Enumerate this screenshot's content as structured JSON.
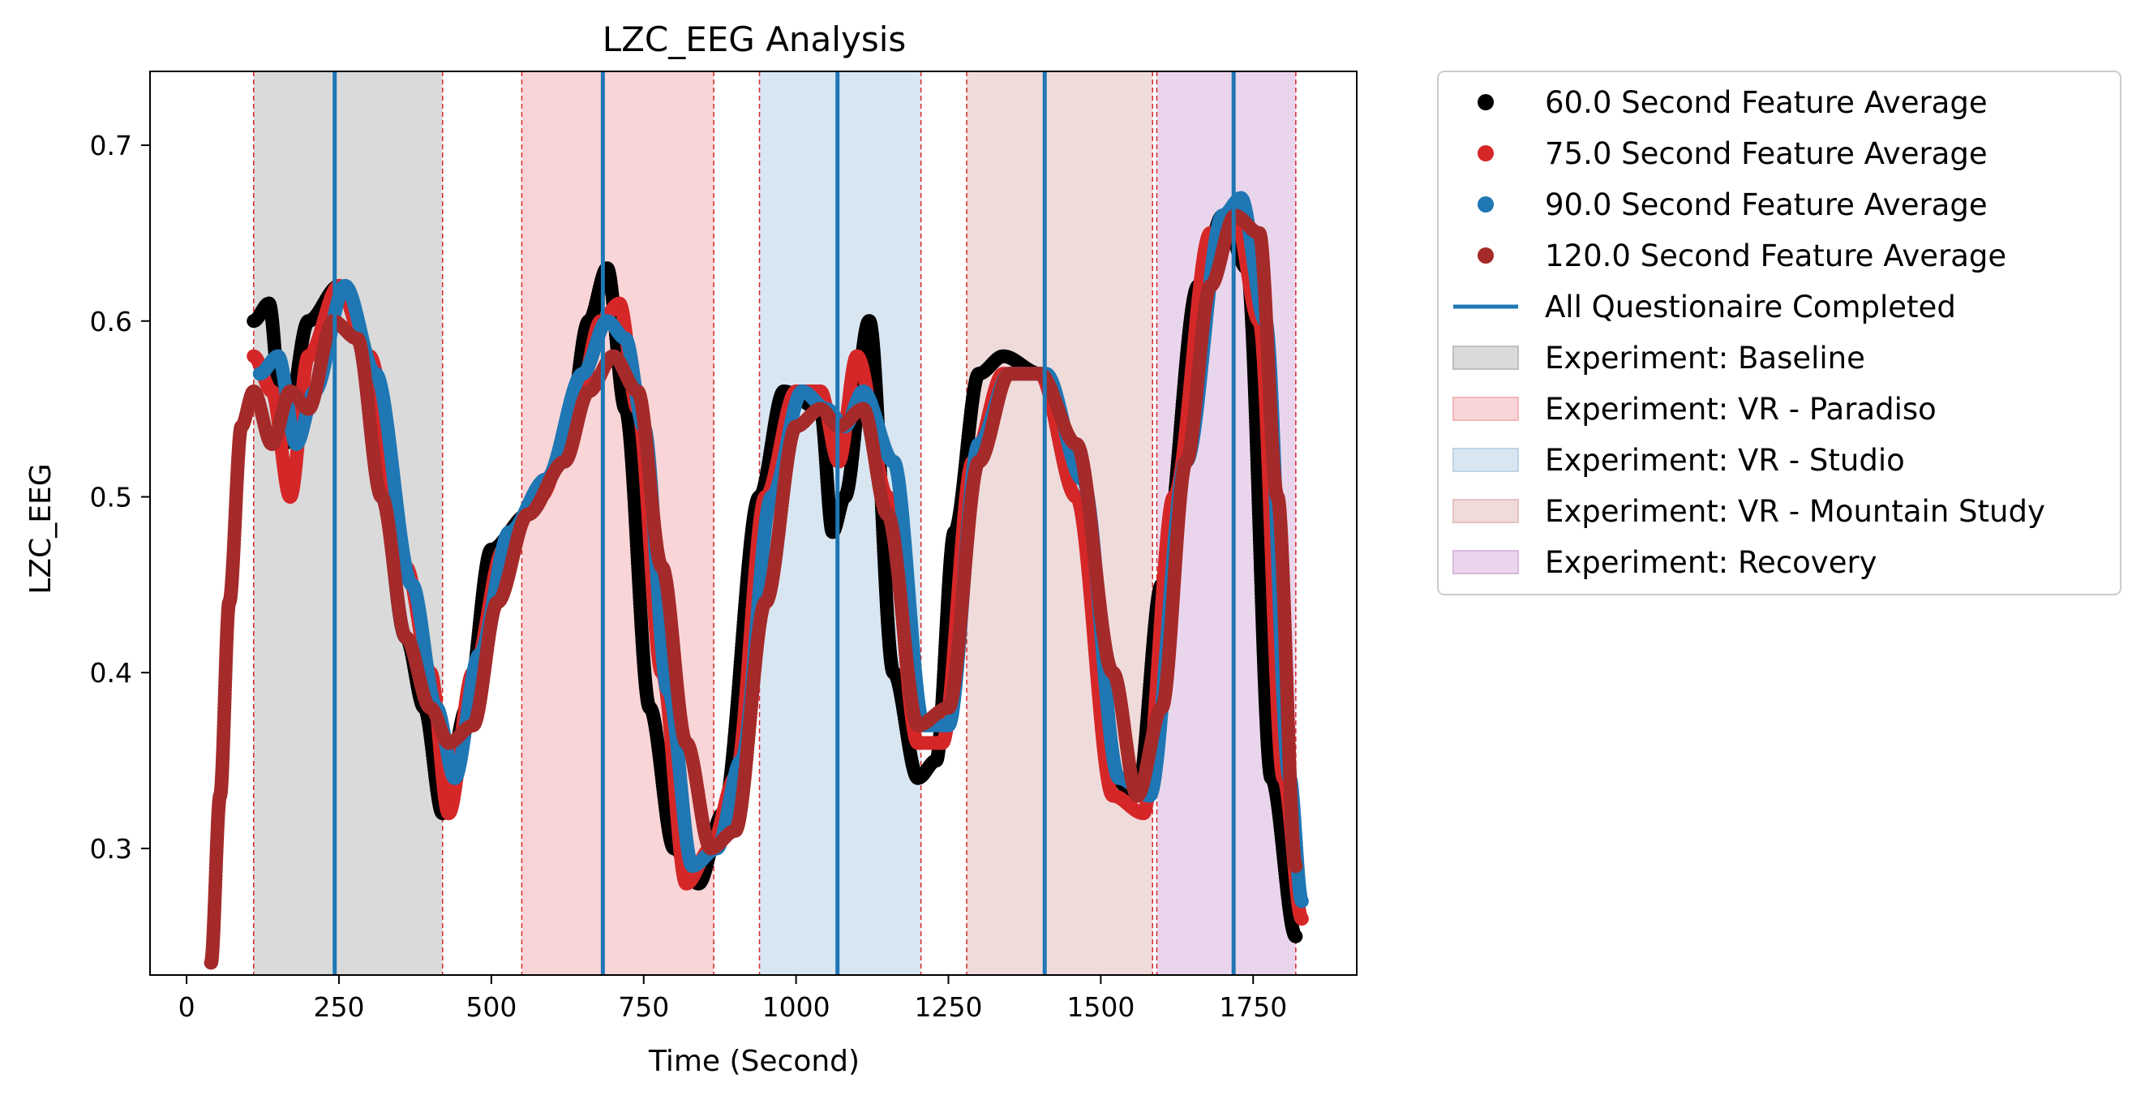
{
  "chart_data": {
    "type": "scatter",
    "title": "LZC_EEG Analysis",
    "xlabel": "Time (Second)",
    "ylabel": "LZC_EEG",
    "xlim": [
      -60,
      1920
    ],
    "ylim": [
      0.228,
      0.742
    ],
    "xticks": [
      0,
      250,
      500,
      750,
      1000,
      1250,
      1500,
      1750
    ],
    "yticks": [
      0.3,
      0.4,
      0.5,
      0.6,
      0.7
    ],
    "ytick_labels": [
      "0.3",
      "0.4",
      "0.5",
      "0.6",
      "0.7"
    ],
    "legend_position": "outside-right-top",
    "series": [
      {
        "name": "60.0 Second Feature Average",
        "color": "#000000",
        "x": [
          110,
          135,
          160,
          200,
          250,
          300,
          360,
          390,
          420,
          460,
          500,
          560,
          620,
          660,
          690,
          720,
          760,
          800,
          840,
          880,
          940,
          980,
          1040,
          1060,
          1080,
          1120,
          1160,
          1200,
          1230,
          1260,
          1300,
          1340,
          1400,
          1460,
          1520,
          1560,
          1600,
          1660,
          1700,
          1740,
          1780,
          1820
        ],
        "y": [
          0.6,
          0.61,
          0.53,
          0.6,
          0.62,
          0.58,
          0.42,
          0.38,
          0.32,
          0.38,
          0.47,
          0.49,
          0.52,
          0.6,
          0.63,
          0.55,
          0.38,
          0.3,
          0.28,
          0.32,
          0.5,
          0.56,
          0.55,
          0.48,
          0.5,
          0.6,
          0.4,
          0.34,
          0.35,
          0.48,
          0.57,
          0.58,
          0.57,
          0.5,
          0.34,
          0.33,
          0.45,
          0.62,
          0.66,
          0.63,
          0.34,
          0.25
        ]
      },
      {
        "name": "75.0 Second Feature Average",
        "color": "#d62728",
        "x": [
          110,
          140,
          170,
          200,
          250,
          300,
          360,
          400,
          430,
          470,
          520,
          580,
          640,
          680,
          710,
          740,
          780,
          820,
          860,
          900,
          950,
          1000,
          1040,
          1070,
          1100,
          1150,
          1200,
          1240,
          1290,
          1340,
          1400,
          1460,
          1520,
          1570,
          1620,
          1680,
          1720,
          1760,
          1800,
          1830
        ],
        "y": [
          0.58,
          0.56,
          0.5,
          0.58,
          0.62,
          0.58,
          0.46,
          0.4,
          0.32,
          0.4,
          0.47,
          0.5,
          0.55,
          0.6,
          0.61,
          0.55,
          0.4,
          0.28,
          0.3,
          0.34,
          0.5,
          0.56,
          0.56,
          0.52,
          0.58,
          0.5,
          0.36,
          0.36,
          0.52,
          0.57,
          0.57,
          0.5,
          0.33,
          0.32,
          0.5,
          0.65,
          0.66,
          0.6,
          0.34,
          0.26
        ]
      },
      {
        "name": "90.0 Second Feature Average",
        "color": "#1f77b4",
        "x": [
          120,
          150,
          180,
          210,
          260,
          310,
          370,
          410,
          440,
          480,
          530,
          590,
          650,
          690,
          720,
          750,
          790,
          830,
          870,
          910,
          960,
          1010,
          1050,
          1080,
          1110,
          1160,
          1210,
          1250,
          1300,
          1350,
          1410,
          1470,
          1530,
          1580,
          1640,
          1700,
          1730,
          1770,
          1810,
          1830
        ],
        "y": [
          0.57,
          0.58,
          0.53,
          0.56,
          0.62,
          0.57,
          0.45,
          0.38,
          0.34,
          0.41,
          0.48,
          0.51,
          0.57,
          0.6,
          0.59,
          0.54,
          0.39,
          0.29,
          0.3,
          0.35,
          0.5,
          0.56,
          0.55,
          0.54,
          0.56,
          0.52,
          0.37,
          0.37,
          0.53,
          0.57,
          0.57,
          0.51,
          0.34,
          0.33,
          0.52,
          0.66,
          0.67,
          0.6,
          0.34,
          0.27
        ]
      },
      {
        "name": "120.0 Second Feature Average",
        "color": "#a52a2a",
        "x": [
          40,
          55,
          70,
          90,
          110,
          140,
          170,
          200,
          240,
          280,
          320,
          360,
          400,
          430,
          470,
          510,
          560,
          620,
          660,
          700,
          740,
          780,
          820,
          860,
          900,
          950,
          1000,
          1040,
          1070,
          1110,
          1150,
          1200,
          1250,
          1300,
          1350,
          1400,
          1460,
          1520,
          1560,
          1600,
          1640,
          1680,
          1720,
          1760,
          1790,
          1820
        ],
        "y": [
          0.235,
          0.33,
          0.44,
          0.54,
          0.56,
          0.53,
          0.56,
          0.55,
          0.6,
          0.59,
          0.5,
          0.42,
          0.38,
          0.36,
          0.37,
          0.44,
          0.49,
          0.52,
          0.56,
          0.58,
          0.56,
          0.46,
          0.36,
          0.3,
          0.31,
          0.44,
          0.54,
          0.55,
          0.54,
          0.55,
          0.49,
          0.37,
          0.38,
          0.52,
          0.57,
          0.57,
          0.53,
          0.4,
          0.33,
          0.38,
          0.52,
          0.62,
          0.66,
          0.65,
          0.5,
          0.29
        ]
      }
    ],
    "vertical_lines": {
      "name": "All Questionaire Completed",
      "color": "#1f77b4",
      "x": [
        243,
        683,
        1068,
        1408,
        1718
      ]
    },
    "boundary_lines": {
      "color": "#d62728",
      "x": [
        110,
        420,
        550,
        865,
        940,
        1205,
        1280,
        1585,
        1592,
        1820
      ]
    },
    "regions": [
      {
        "name": "Experiment: Baseline",
        "color": "#bfbfbf",
        "x0": 110,
        "x1": 420
      },
      {
        "name": "Experiment: VR - Paradiso",
        "color": "#f4b6ba",
        "x0": 550,
        "x1": 865
      },
      {
        "name": "Experiment: VR - Studio",
        "color": "#bcd4e8",
        "x0": 940,
        "x1": 1205
      },
      {
        "name": "Experiment: VR - Mountain Study",
        "color": "#e6c1c1",
        "x0": 1280,
        "x1": 1585
      },
      {
        "name": "Experiment: Recovery",
        "color": "#dab8de",
        "x0": 1592,
        "x1": 1820
      }
    ]
  }
}
